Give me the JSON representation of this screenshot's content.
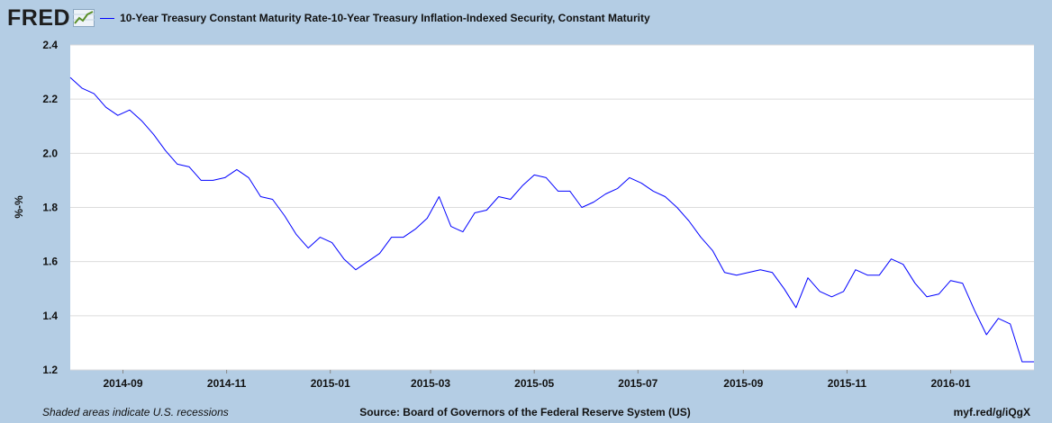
{
  "header": {
    "logo_text": "FRED",
    "logo_icon": "line-chart-icon"
  },
  "footer": {
    "note": "Shaded areas indicate U.S. recessions",
    "source": "Source: Board of Governors of the Federal Reserve System (US)",
    "link": "myf.red/g/iQgX"
  },
  "colors": {
    "background": "#b4cde4",
    "plot_background": "#ffffff",
    "series": "#0000ff",
    "grid": "#dcdcdc"
  },
  "chart_data": {
    "type": "line",
    "title": "",
    "ylabel": "%-%",
    "xlabel": "",
    "ylim": [
      1.2,
      2.4
    ],
    "yticks": [
      "1.2",
      "1.4",
      "1.6",
      "1.8",
      "2.0",
      "2.2",
      "2.4"
    ],
    "xlim": [
      "2014-08-01",
      "2016-02-19"
    ],
    "xticks": [
      {
        "date": "2014-09-01",
        "label": "2014-09"
      },
      {
        "date": "2014-11-01",
        "label": "2014-11"
      },
      {
        "date": "2015-01-01",
        "label": "2015-01"
      },
      {
        "date": "2015-03-01",
        "label": "2015-03"
      },
      {
        "date": "2015-05-01",
        "label": "2015-05"
      },
      {
        "date": "2015-07-01",
        "label": "2015-07"
      },
      {
        "date": "2015-09-01",
        "label": "2015-09"
      },
      {
        "date": "2015-11-01",
        "label": "2015-11"
      },
      {
        "date": "2016-01-01",
        "label": "2016-01"
      }
    ],
    "grid": true,
    "legend": "top-left",
    "series": [
      {
        "name": "10-Year Treasury Constant Maturity Rate-10-Year Treasury Inflation-Indexed Security, Constant Maturity",
        "x": [
          "2014-08-01",
          "2014-08-08",
          "2014-08-15",
          "2014-08-22",
          "2014-08-29",
          "2014-09-05",
          "2014-09-12",
          "2014-09-19",
          "2014-09-26",
          "2014-10-03",
          "2014-10-10",
          "2014-10-17",
          "2014-10-24",
          "2014-10-31",
          "2014-11-07",
          "2014-11-14",
          "2014-11-21",
          "2014-11-28",
          "2014-12-05",
          "2014-12-12",
          "2014-12-19",
          "2014-12-26",
          "2015-01-02",
          "2015-01-09",
          "2015-01-16",
          "2015-01-23",
          "2015-01-30",
          "2015-02-06",
          "2015-02-13",
          "2015-02-20",
          "2015-02-27",
          "2015-03-06",
          "2015-03-13",
          "2015-03-20",
          "2015-03-27",
          "2015-04-03",
          "2015-04-10",
          "2015-04-17",
          "2015-04-24",
          "2015-05-01",
          "2015-05-08",
          "2015-05-15",
          "2015-05-22",
          "2015-05-29",
          "2015-06-05",
          "2015-06-12",
          "2015-06-19",
          "2015-06-26",
          "2015-07-03",
          "2015-07-10",
          "2015-07-17",
          "2015-07-24",
          "2015-07-31",
          "2015-08-07",
          "2015-08-14",
          "2015-08-21",
          "2015-08-28",
          "2015-09-04",
          "2015-09-11",
          "2015-09-18",
          "2015-09-25",
          "2015-10-02",
          "2015-10-09",
          "2015-10-16",
          "2015-10-23",
          "2015-10-30",
          "2015-11-06",
          "2015-11-13",
          "2015-11-20",
          "2015-11-27",
          "2015-12-04",
          "2015-12-11",
          "2015-12-18",
          "2015-12-25",
          "2016-01-01",
          "2016-01-08",
          "2016-01-15",
          "2016-01-22",
          "2016-01-29",
          "2016-02-05",
          "2016-02-12",
          "2016-02-19"
        ],
        "values": [
          2.28,
          2.24,
          2.22,
          2.17,
          2.14,
          2.16,
          2.12,
          2.07,
          2.01,
          1.96,
          1.95,
          1.9,
          1.9,
          1.91,
          1.94,
          1.91,
          1.84,
          1.83,
          1.77,
          1.7,
          1.65,
          1.69,
          1.67,
          1.61,
          1.57,
          1.6,
          1.63,
          1.69,
          1.69,
          1.72,
          1.76,
          1.84,
          1.73,
          1.71,
          1.78,
          1.79,
          1.84,
          1.83,
          1.88,
          1.92,
          1.91,
          1.86,
          1.86,
          1.8,
          1.82,
          1.85,
          1.87,
          1.91,
          1.89,
          1.86,
          1.84,
          1.8,
          1.75,
          1.69,
          1.64,
          1.56,
          1.55,
          1.56,
          1.57,
          1.56,
          1.5,
          1.43,
          1.54,
          1.49,
          1.47,
          1.49,
          1.57,
          1.55,
          1.55,
          1.61,
          1.59,
          1.52,
          1.47,
          1.48,
          1.53,
          1.52,
          1.42,
          1.33,
          1.39,
          1.37,
          1.23,
          1.23
        ]
      }
    ]
  }
}
